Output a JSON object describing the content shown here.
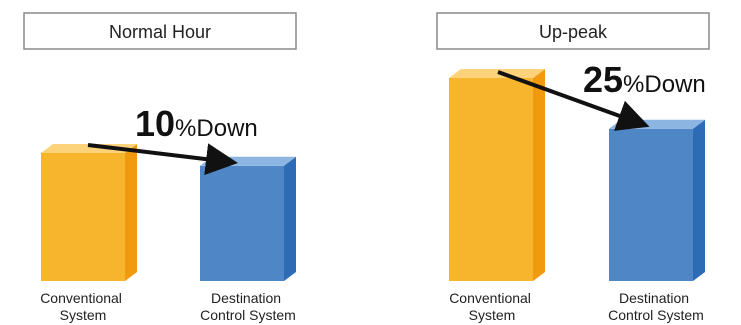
{
  "chart_data": [
    {
      "type": "bar",
      "title": "Normal Hour",
      "categories": [
        "Conventional\nSystem",
        "Destination\nControl System"
      ],
      "values": [
        100,
        90
      ],
      "reduction": {
        "number": "10",
        "unit": "%Down"
      },
      "colors": {
        "front": [
          "#F7B52E",
          "#4F86C6"
        ],
        "side": [
          "#F29A0E",
          "#2E6BB5"
        ],
        "top": [
          "#FCD27A",
          "#8CB5E2"
        ]
      }
    },
    {
      "type": "bar",
      "title": "Up-peak",
      "categories": [
        "Conventional\nSystem",
        "Destination\nControl System"
      ],
      "values": [
        100,
        75
      ],
      "reduction": {
        "number": "25",
        "unit": "%Down"
      },
      "colors": {
        "front": [
          "#F7B52E",
          "#4F86C6"
        ],
        "side": [
          "#F29A0E",
          "#2E6BB5"
        ],
        "top": [
          "#FCD27A",
          "#8CB5E2"
        ]
      }
    }
  ]
}
